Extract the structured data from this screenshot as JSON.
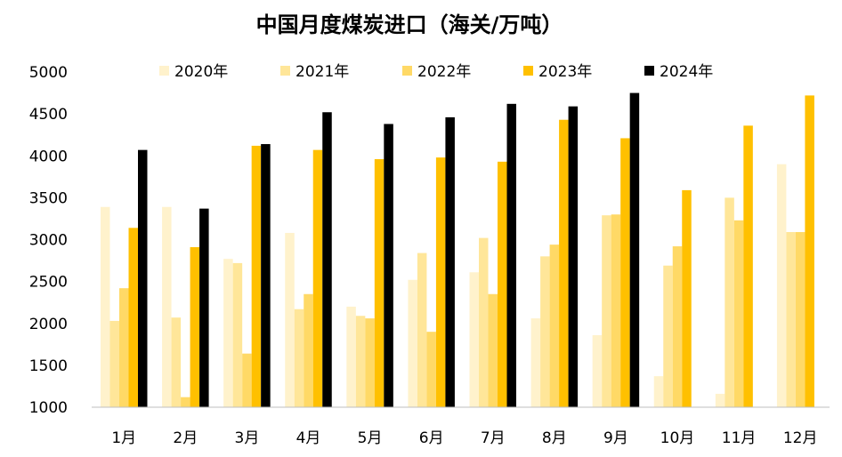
{
  "chart_data": {
    "type": "bar",
    "title": "中国月度煤炭进口（海关/万吨）",
    "xlabel": "",
    "ylabel": "",
    "ylim": [
      1000,
      5000
    ],
    "yticks": [
      "5000",
      "4500",
      "4000",
      "3500",
      "3000",
      "2500",
      "2000",
      "1500",
      "1000"
    ],
    "categories": [
      "1月",
      "2月",
      "3月",
      "4月",
      "5月",
      "6月",
      "7月",
      "8月",
      "9月",
      "10月",
      "11月",
      "12月"
    ],
    "legend_position": "top",
    "grid": false,
    "series": [
      {
        "name": "2020年",
        "color": "#FFF2CC",
        "values": [
          3390,
          3390,
          2770,
          3080,
          2200,
          2520,
          2610,
          2060,
          1860,
          1370,
          1160,
          3900
        ]
      },
      {
        "name": "2021年",
        "color": "#FFE699",
        "values": [
          2030,
          2070,
          2720,
          2170,
          2090,
          2840,
          3020,
          2800,
          3290,
          2690,
          3500,
          3090
        ]
      },
      {
        "name": "2022年",
        "color": "#FFD966",
        "values": [
          2420,
          1120,
          1640,
          2350,
          2060,
          1900,
          2350,
          2940,
          3300,
          2920,
          3230,
          3090
        ]
      },
      {
        "name": "2023年",
        "color": "#FFC000",
        "values": [
          3140,
          2910,
          4120,
          4070,
          3960,
          3980,
          3930,
          4430,
          4210,
          3590,
          4360,
          4720
        ]
      },
      {
        "name": "2024年",
        "color": "#000000",
        "values": [
          4070,
          3370,
          4140,
          4520,
          4380,
          4460,
          4620,
          4590,
          4750,
          null,
          null,
          null
        ]
      }
    ]
  }
}
